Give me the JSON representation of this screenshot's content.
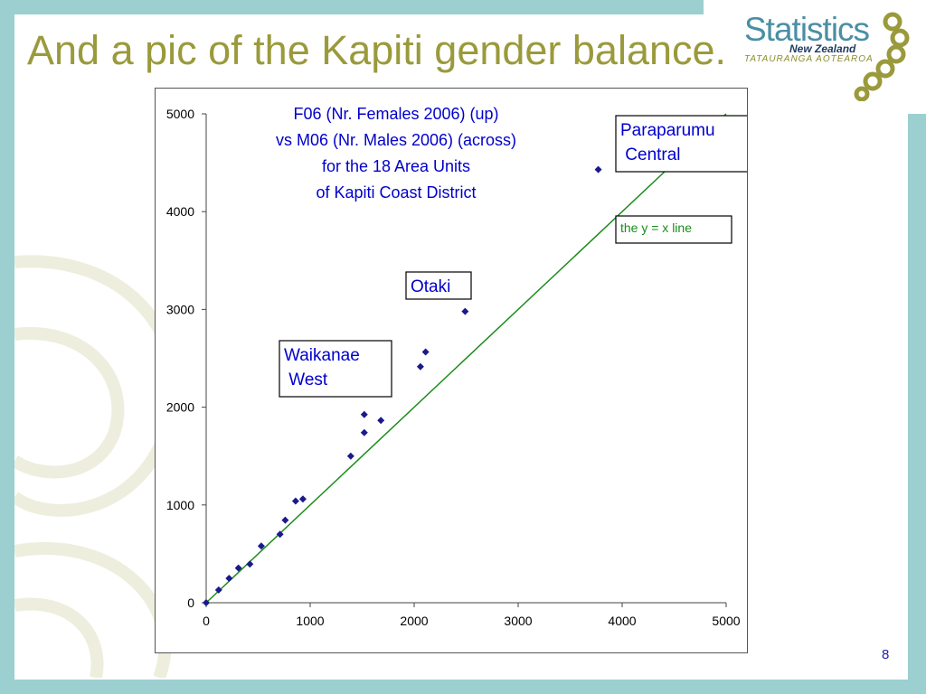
{
  "slide": {
    "title": "And a pic of the Kapiti gender balance.",
    "page_number": "8"
  },
  "logo": {
    "main": "Statistics",
    "sub": "New Zealand",
    "tag": "TATAURANGA AOTEAROA"
  },
  "colors": {
    "frame": "#9ccfd0",
    "title": "#9a9a3c",
    "points": "#1a1a8c",
    "ref_line": "#1a8c1a",
    "chart_text": "#0000cc"
  },
  "chart_data": {
    "type": "scatter",
    "title_lines": [
      "F06 (Nr. Females 2006) (up)",
      "vs M06 (Nr. Males 2006) (across)",
      "for the 18 Area Units",
      "of Kapiti Coast District"
    ],
    "xlim": [
      0,
      5000
    ],
    "ylim": [
      0,
      5000
    ],
    "x_ticks": [
      0,
      1000,
      2000,
      3000,
      4000,
      5000
    ],
    "y_ticks": [
      0,
      1000,
      2000,
      3000,
      4000,
      5000
    ],
    "grid": false,
    "points": [
      {
        "x": 0,
        "y": 0
      },
      {
        "x": 120,
        "y": 130
      },
      {
        "x": 220,
        "y": 250
      },
      {
        "x": 310,
        "y": 355
      },
      {
        "x": 420,
        "y": 395
      },
      {
        "x": 530,
        "y": 580
      },
      {
        "x": 710,
        "y": 700
      },
      {
        "x": 760,
        "y": 845
      },
      {
        "x": 860,
        "y": 1040
      },
      {
        "x": 930,
        "y": 1060
      },
      {
        "x": 1390,
        "y": 1500
      },
      {
        "x": 1520,
        "y": 1740
      },
      {
        "x": 1520,
        "y": 1925
      },
      {
        "x": 1680,
        "y": 1865
      },
      {
        "x": 2060,
        "y": 2415
      },
      {
        "x": 2110,
        "y": 2565
      },
      {
        "x": 2490,
        "y": 2980
      },
      {
        "x": 3770,
        "y": 4430
      }
    ],
    "reference_line": {
      "label": "the y = x line",
      "from": [
        0,
        0
      ],
      "to": [
        5000,
        5000
      ]
    },
    "annotations": [
      {
        "lines": [
          "Paraparumu",
          " Central"
        ]
      },
      {
        "lines": [
          "Otaki"
        ]
      },
      {
        "lines": [
          "Waikanae",
          " West"
        ]
      }
    ]
  }
}
